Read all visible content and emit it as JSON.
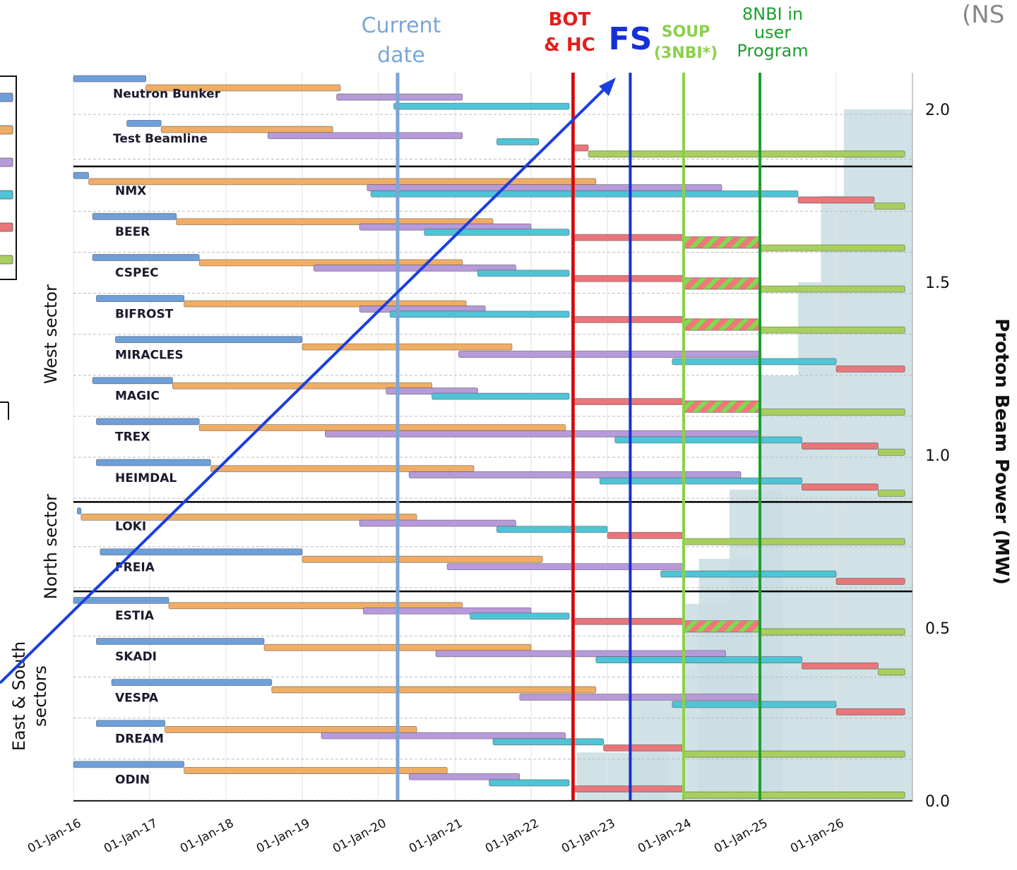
{
  "corner_text": "(NS",
  "chart_data": {
    "type": "gantt",
    "x_ticks": [
      "01-Jan-16",
      "01-Jan-17",
      "01-Jan-18",
      "01-Jan-19",
      "01-Jan-20",
      "01-Jan-21",
      "01-Jan-22",
      "01-Jan-23",
      "01-Jan-24",
      "01-Jan-25",
      "01-Jan-26"
    ],
    "xlim": [
      2016.0,
      2027.0
    ],
    "y_right_label": "Proton Beam Power (MW)",
    "y_right_ticks": [
      "2.0",
      "1.5",
      "1.0",
      "0.5",
      "0.0"
    ],
    "y_right_values": [
      2.0,
      1.5,
      1.0,
      0.5,
      0.0
    ],
    "ylim": [
      0.0,
      2.1
    ],
    "phase_colors": [
      "#6f9fd8",
      "#f0ad65",
      "#b69ad9",
      "#4fc4d6",
      "#e8767a",
      "#a8cf5e"
    ],
    "legend_colors": [
      "#6f9fd8",
      "#f0ad65",
      "#b69ad9",
      "#4fc4d6",
      "#e8767a",
      "#a8cf5e"
    ],
    "current_date": {
      "label": "Current date",
      "x": 2020.25,
      "color": "#7aa6d6"
    },
    "events": [
      {
        "label": "BOT\n& HC",
        "x": 2022.55,
        "color": "#e81c1c"
      },
      {
        "label": "FS",
        "x": 2023.3,
        "color": "#1530d8"
      },
      {
        "label": "SOUP\n(3NBI*)",
        "x": 2024.0,
        "color": "#8cd04a"
      },
      {
        "label": "8NBI in\nuser\nProgram",
        "x": 2025.0,
        "color": "#1e9e2e"
      }
    ],
    "power_ramp": [
      {
        "x0": 2022.6,
        "x1": 2023.8,
        "p": 0.14
      },
      {
        "x0": 2023.3,
        "x1": 2024.0,
        "p": 0.29
      },
      {
        "x0": 2024.0,
        "x1": 2024.6,
        "p": 0.57
      },
      {
        "x0": 2024.2,
        "x1": 2024.9,
        "p": 0.7
      },
      {
        "x0": 2024.6,
        "x1": 2025.3,
        "p": 0.9
      },
      {
        "x0": 2025.0,
        "x1": 2025.5,
        "p": 1.23
      },
      {
        "x0": 2025.5,
        "x1": 2025.8,
        "p": 1.5
      },
      {
        "x0": 2025.8,
        "x1": 2026.1,
        "p": 1.75
      },
      {
        "x0": 2026.1,
        "x1": 2027.0,
        "p": 2.0
      }
    ],
    "sectors": [
      {
        "label": "West sector"
      },
      {
        "label": "North sector"
      },
      {
        "label": "East & South\nsectors"
      }
    ],
    "instruments": [
      {
        "name": "Neutron Bunker",
        "group": 0,
        "bars": [
          [
            0,
            2016.0,
            2016.95
          ],
          [
            1,
            2016.95,
            2019.5
          ],
          [
            2,
            2019.45,
            2021.1
          ],
          [
            3,
            2020.2,
            2022.5
          ]
        ]
      },
      {
        "name": "Test Beamline",
        "group": 0,
        "bars": [
          [
            0,
            2016.7,
            2017.15
          ],
          [
            1,
            2017.15,
            2019.4
          ],
          [
            2,
            2018.55,
            2021.1
          ],
          [
            3,
            2021.55,
            2022.1
          ],
          [
            4,
            2022.55,
            2022.75
          ],
          [
            5,
            2022.75,
            2026.9
          ]
        ]
      },
      {
        "name": "NMX",
        "group": 1,
        "bars": [
          [
            0,
            2016.0,
            2016.2
          ],
          [
            1,
            2016.2,
            2022.85
          ],
          [
            2,
            2019.85,
            2024.5
          ],
          [
            3,
            2019.9,
            2025.5
          ],
          [
            4,
            2025.5,
            2026.5
          ],
          [
            5,
            2026.5,
            2026.9
          ]
        ]
      },
      {
        "name": "BEER",
        "group": 1,
        "bars": [
          [
            0,
            2016.25,
            2017.35
          ],
          [
            1,
            2017.35,
            2021.5
          ],
          [
            2,
            2019.75,
            2022.0
          ],
          [
            3,
            2020.6,
            2022.5
          ],
          [
            4,
            2022.55,
            2024.0
          ],
          [
            6,
            2024.0,
            2025.0
          ],
          [
            5,
            2025.0,
            2026.9
          ]
        ]
      },
      {
        "name": "CSPEC",
        "group": 1,
        "bars": [
          [
            0,
            2016.25,
            2017.65
          ],
          [
            1,
            2017.65,
            2021.1
          ],
          [
            2,
            2019.15,
            2021.8
          ],
          [
            3,
            2021.3,
            2022.5
          ],
          [
            4,
            2022.55,
            2024.0
          ],
          [
            6,
            2024.0,
            2025.0
          ],
          [
            5,
            2025.0,
            2026.9
          ]
        ]
      },
      {
        "name": "BIFROST",
        "group": 1,
        "bars": [
          [
            0,
            2016.3,
            2017.45
          ],
          [
            1,
            2017.45,
            2021.15
          ],
          [
            2,
            2019.75,
            2021.4
          ],
          [
            3,
            2020.15,
            2022.5
          ],
          [
            4,
            2022.55,
            2024.0
          ],
          [
            6,
            2024.0,
            2025.0
          ],
          [
            5,
            2025.0,
            2026.9
          ]
        ]
      },
      {
        "name": "MIRACLES",
        "group": 1,
        "bars": [
          [
            0,
            2016.55,
            2019.0
          ],
          [
            1,
            2019.0,
            2021.75
          ],
          [
            2,
            2021.05,
            2025.0
          ],
          [
            3,
            2023.85,
            2026.0
          ],
          [
            4,
            2026.0,
            2026.9
          ]
        ]
      },
      {
        "name": "MAGIC",
        "group": 1,
        "bars": [
          [
            0,
            2016.25,
            2017.3
          ],
          [
            1,
            2017.3,
            2020.7
          ],
          [
            2,
            2020.1,
            2021.3
          ],
          [
            3,
            2020.7,
            2022.5
          ],
          [
            4,
            2022.55,
            2024.0
          ],
          [
            6,
            2024.0,
            2025.0
          ],
          [
            5,
            2025.0,
            2026.9
          ]
        ]
      },
      {
        "name": "TREX",
        "group": 1,
        "bars": [
          [
            0,
            2016.3,
            2017.65
          ],
          [
            1,
            2017.65,
            2022.45
          ],
          [
            2,
            2019.3,
            2025.0
          ],
          [
            3,
            2023.1,
            2025.55
          ],
          [
            4,
            2025.55,
            2026.55
          ],
          [
            5,
            2026.55,
            2026.9
          ]
        ]
      },
      {
        "name": "HEIMDAL",
        "group": 1,
        "bars": [
          [
            0,
            2016.3,
            2017.8
          ],
          [
            1,
            2017.8,
            2021.25
          ],
          [
            2,
            2020.4,
            2024.75
          ],
          [
            3,
            2022.9,
            2025.55
          ],
          [
            4,
            2025.55,
            2026.55
          ],
          [
            5,
            2026.55,
            2026.9
          ]
        ]
      },
      {
        "name": "LOKI",
        "group": 2,
        "bars": [
          [
            0,
            2016.05,
            2016.1
          ],
          [
            1,
            2016.1,
            2020.5
          ],
          [
            2,
            2019.75,
            2021.8
          ],
          [
            3,
            2021.55,
            2023.0
          ],
          [
            4,
            2023.0,
            2024.0
          ],
          [
            5,
            2024.0,
            2026.9
          ]
        ]
      },
      {
        "name": "FREIA",
        "group": 2,
        "bars": [
          [
            0,
            2016.35,
            2019.0
          ],
          [
            1,
            2019.0,
            2022.15
          ],
          [
            2,
            2020.9,
            2024.0
          ],
          [
            3,
            2023.7,
            2026.0
          ],
          [
            4,
            2026.0,
            2026.9
          ]
        ]
      },
      {
        "name": "ESTIA",
        "group": 3,
        "bars": [
          [
            0,
            2016.0,
            2017.25
          ],
          [
            1,
            2017.25,
            2021.1
          ],
          [
            2,
            2019.8,
            2022.0
          ],
          [
            3,
            2021.2,
            2022.5
          ],
          [
            4,
            2022.55,
            2024.0
          ],
          [
            6,
            2024.0,
            2025.0
          ],
          [
            5,
            2025.0,
            2026.9
          ]
        ]
      },
      {
        "name": "SKADI",
        "group": 3,
        "bars": [
          [
            0,
            2016.3,
            2018.5
          ],
          [
            1,
            2018.5,
            2022.0
          ],
          [
            2,
            2020.75,
            2024.55
          ],
          [
            3,
            2022.85,
            2025.55
          ],
          [
            4,
            2025.55,
            2026.55
          ],
          [
            5,
            2026.55,
            2026.9
          ]
        ]
      },
      {
        "name": "VESPA",
        "group": 3,
        "bars": [
          [
            0,
            2016.5,
            2018.6
          ],
          [
            1,
            2018.6,
            2022.85
          ],
          [
            2,
            2021.85,
            2025.0
          ],
          [
            3,
            2023.85,
            2026.0
          ],
          [
            4,
            2026.0,
            2026.9
          ]
        ]
      },
      {
        "name": "DREAM",
        "group": 3,
        "bars": [
          [
            0,
            2016.3,
            2017.2
          ],
          [
            1,
            2017.2,
            2020.5
          ],
          [
            2,
            2019.25,
            2022.45
          ],
          [
            3,
            2021.5,
            2022.95
          ],
          [
            4,
            2022.95,
            2024.0
          ],
          [
            5,
            2024.0,
            2026.9
          ]
        ]
      },
      {
        "name": "ODIN",
        "group": 3,
        "bars": [
          [
            0,
            2016.0,
            2017.45
          ],
          [
            1,
            2017.45,
            2020.9
          ],
          [
            2,
            2020.4,
            2021.85
          ],
          [
            3,
            2021.45,
            2022.5
          ],
          [
            4,
            2022.55,
            2024.0
          ],
          [
            5,
            2024.0,
            2026.9
          ]
        ]
      }
    ]
  }
}
